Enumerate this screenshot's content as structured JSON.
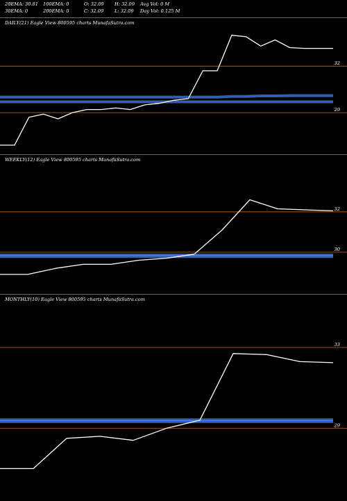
{
  "header": {
    "row1": [
      "20EMA: 30.81",
      "100EMA: 0",
      "O: 32.09",
      "H: 32.09",
      "Avg Vol: 0  M"
    ],
    "row2": [
      "30EMA: 0",
      "200EMA: 0",
      "C: 32.09",
      "L: 32.09",
      "Day Vol: 0.125 M"
    ]
  },
  "colors": {
    "price": "#ffffff",
    "ema": "#1e5fd6",
    "ema_light": "#7fa7ff",
    "level": "#b35a1f",
    "bg": "#000000"
  },
  "chart_data": [
    {
      "type": "line",
      "title": "DAILY(21) Eagle  View  800595 charts MunafaSutra.com",
      "ylim": [
        26.4,
        34.3
      ],
      "yticks": [
        29,
        32
      ],
      "levels": [
        29,
        32
      ],
      "x": [
        1,
        2,
        3,
        4,
        5,
        6,
        7,
        8,
        9,
        10,
        11,
        12,
        13,
        14,
        15,
        16,
        17,
        18,
        19,
        20,
        21,
        22,
        23,
        24
      ],
      "series": [
        {
          "role": "price",
          "values": [
            26.9,
            26.9,
            28.7,
            28.9,
            28.6,
            29.0,
            29.2,
            29.2,
            29.3,
            29.2,
            29.5,
            29.6,
            29.8,
            29.9,
            31.7,
            31.7,
            34.0,
            33.9,
            33.3,
            33.7,
            33.2,
            33.15,
            33.15,
            33.15
          ]
        },
        {
          "role": "ema",
          "values": [
            30.0,
            30.0,
            30.0,
            30.0,
            30.0,
            30.0,
            30.0,
            30.0,
            30.0,
            30.0,
            30.0,
            30.0,
            30.0,
            30.0,
            30.0,
            30.0,
            30.05,
            30.05,
            30.08,
            30.08,
            30.1,
            30.1,
            30.1,
            30.1
          ]
        },
        {
          "role": "ema",
          "values": [
            29.7,
            29.7,
            29.7,
            29.7,
            29.7,
            29.7,
            29.7,
            29.7,
            29.7,
            29.7,
            29.7,
            29.7,
            29.7,
            29.7,
            29.7,
            29.7,
            29.7,
            29.7,
            29.7,
            29.7,
            29.7,
            29.7,
            29.7,
            29.7
          ]
        }
      ]
    },
    {
      "type": "line",
      "title": "WEEKLY(12) Eagle  View  800595 charts MunafaSutra.com",
      "ylim": [
        28.0,
        34.2
      ],
      "yticks": [
        30,
        32
      ],
      "levels": [
        30,
        32
      ],
      "x": [
        1,
        2,
        3,
        4,
        5,
        6,
        7,
        8,
        9,
        10,
        11,
        12,
        13
      ],
      "series": [
        {
          "role": "price",
          "values": [
            28.9,
            28.9,
            29.2,
            29.4,
            29.4,
            29.6,
            29.7,
            29.9,
            31.1,
            32.6,
            32.15,
            32.1,
            32.05
          ]
        },
        {
          "role": "ema",
          "values": [
            29.86,
            29.86,
            29.86,
            29.86,
            29.86,
            29.86,
            29.86,
            29.86,
            29.86,
            29.86,
            29.86,
            29.86,
            29.86
          ]
        },
        {
          "role": "ema",
          "values": [
            29.78,
            29.78,
            29.78,
            29.78,
            29.78,
            29.78,
            29.78,
            29.78,
            29.78,
            29.78,
            29.78,
            29.78,
            29.78
          ]
        }
      ]
    },
    {
      "type": "line",
      "title": "MONTHLY(10) Eagle  View  800595 charts MunafaSutra.com",
      "ylim": [
        25.5,
        35.0
      ],
      "yticks": [
        29,
        33
      ],
      "levels": [
        29,
        33
      ],
      "x": [
        1,
        2,
        3,
        4,
        5,
        6,
        7,
        8,
        9,
        10,
        11
      ],
      "series": [
        {
          "role": "price",
          "values": [
            27.0,
            27.0,
            28.5,
            28.6,
            28.4,
            29.0,
            29.4,
            32.7,
            32.65,
            32.3,
            32.25
          ]
        },
        {
          "role": "ema",
          "values": [
            29.42,
            29.42,
            29.42,
            29.42,
            29.42,
            29.42,
            29.42,
            29.42,
            29.42,
            29.42,
            29.42
          ]
        },
        {
          "role": "ema",
          "values": [
            29.33,
            29.33,
            29.33,
            29.33,
            29.33,
            29.33,
            29.33,
            29.33,
            29.33,
            29.33,
            29.33
          ]
        }
      ]
    }
  ]
}
